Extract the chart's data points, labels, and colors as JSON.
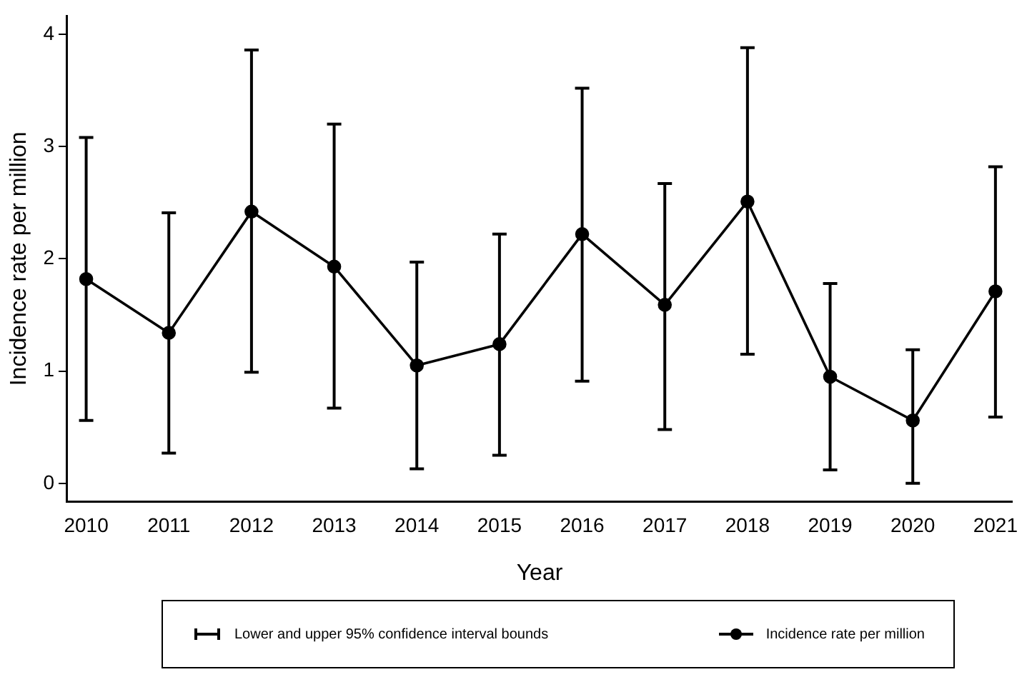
{
  "chart_data": {
    "type": "line",
    "xlabel": "Year",
    "ylabel": "Incidence rate per million",
    "x": [
      2010,
      2011,
      2012,
      2013,
      2014,
      2015,
      2016,
      2017,
      2018,
      2019,
      2020,
      2021
    ],
    "xlim": [
      2009.77,
      2021.2
    ],
    "xticks": [
      2010,
      2011,
      2012,
      2013,
      2014,
      2015,
      2016,
      2017,
      2018,
      2019,
      2020,
      2021
    ],
    "ylim": [
      -0.16,
      4.16
    ],
    "yticks": [
      0,
      1,
      2,
      3,
      4
    ],
    "series": [
      {
        "name": "Incidence rate per million",
        "color": "#000000",
        "values": [
          1.82,
          1.34,
          2.42,
          1.93,
          1.05,
          1.24,
          2.22,
          1.59,
          2.51,
          0.95,
          0.56,
          1.71
        ],
        "errors": [
          [
            0.56,
            3.08
          ],
          [
            0.27,
            2.41
          ],
          [
            0.99,
            3.86
          ],
          [
            0.67,
            3.2
          ],
          [
            0.13,
            1.97
          ],
          [
            0.25,
            2.22
          ],
          [
            0.91,
            3.52
          ],
          [
            0.48,
            2.67
          ],
          [
            1.15,
            3.88
          ],
          [
            0.12,
            1.78
          ],
          [
            0.0,
            1.19
          ],
          [
            0.59,
            2.82
          ]
        ]
      }
    ],
    "annotations": [
      "Lower and upper 95% confidence interval bounds"
    ],
    "marker": "circle",
    "line_style": "solid",
    "grid": false,
    "legend": "bottom"
  }
}
